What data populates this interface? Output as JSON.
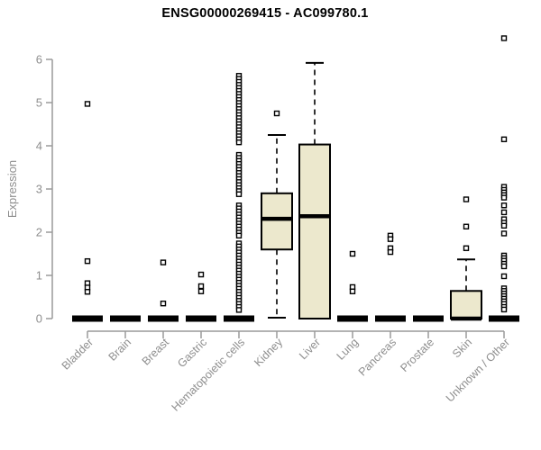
{
  "chart_data": {
    "type": "boxplot",
    "title": "ENSG00000269415 - AC099780.1",
    "xlabel": "",
    "ylabel": "Expression",
    "ylim": [
      0,
      6.6
    ],
    "yticks": [
      0,
      1,
      2,
      3,
      4,
      5,
      6
    ],
    "grid": false,
    "legend": false,
    "colors": {
      "box_fill": "#ECE8CD",
      "box_border": "#000000",
      "median": "#000000",
      "axis": "#9A9A9A",
      "tick_text": "#8E8E8E",
      "title_text": "#000000",
      "outlier_fill": "#FFFFFF"
    },
    "categories": [
      "Bladder",
      "Brain",
      "Breast",
      "Gastric",
      "Hematopoietic cells",
      "Kidney",
      "Liver",
      "Lung",
      "Pancreas",
      "Prostate",
      "Skin",
      "Unknown / Other"
    ],
    "boxes": [
      {
        "label": "Bladder",
        "q1": 0,
        "median": 0,
        "q3": 0,
        "whisker_low": 0,
        "whisker_high": 0,
        "outliers": [
          4.97,
          1.33,
          0.82,
          0.72,
          0.62
        ]
      },
      {
        "label": "Brain",
        "q1": 0,
        "median": 0,
        "q3": 0,
        "whisker_low": 0,
        "whisker_high": 0,
        "outliers": []
      },
      {
        "label": "Breast",
        "q1": 0,
        "median": 0,
        "q3": 0,
        "whisker_low": 0,
        "whisker_high": 0,
        "outliers": [
          1.3,
          0.35
        ]
      },
      {
        "label": "Gastric",
        "q1": 0,
        "median": 0,
        "q3": 0,
        "whisker_low": 0,
        "whisker_high": 0,
        "outliers": [
          1.02,
          0.75,
          0.63
        ]
      },
      {
        "label": "Hematopoietic cells",
        "q1": 0,
        "median": 0,
        "q3": 0,
        "whisker_low": 0,
        "whisker_high": 0,
        "outliers": [
          5.62,
          5.55,
          5.48,
          5.41,
          5.34,
          5.27,
          5.2,
          5.13,
          5.06,
          4.99,
          4.92,
          4.85,
          4.78,
          4.71,
          4.64,
          4.57,
          4.5,
          4.43,
          4.36,
          4.29,
          4.22,
          4.15,
          4.08,
          3.79,
          3.72,
          3.65,
          3.58,
          3.51,
          3.44,
          3.37,
          3.3,
          3.23,
          3.16,
          3.09,
          3.02,
          2.95,
          2.88,
          2.62,
          2.55,
          2.48,
          2.41,
          2.34,
          2.27,
          2.2,
          2.13,
          2.06,
          1.99,
          1.92,
          1.74,
          1.67,
          1.6,
          1.53,
          1.46,
          1.39,
          1.32,
          1.25,
          1.18,
          1.11,
          1.04,
          0.97,
          0.9,
          0.83,
          0.76,
          0.69,
          0.62,
          0.55,
          0.48,
          0.41,
          0.34,
          0.27,
          0.2
        ]
      },
      {
        "label": "Kidney",
        "q1": 1.6,
        "median": 2.31,
        "q3": 2.9,
        "whisker_low": 0.02,
        "whisker_high": 4.25,
        "outliers": [
          4.75
        ]
      },
      {
        "label": "Liver",
        "q1": 0,
        "median": 2.37,
        "q3": 4.03,
        "whisker_low": 0,
        "whisker_high": 5.92,
        "outliers": []
      },
      {
        "label": "Lung",
        "q1": 0,
        "median": 0,
        "q3": 0,
        "whisker_low": 0,
        "whisker_high": 0,
        "outliers": [
          1.5,
          0.73,
          0.63
        ]
      },
      {
        "label": "Pancreas",
        "q1": 0,
        "median": 0,
        "q3": 0,
        "whisker_low": 0,
        "whisker_high": 0,
        "outliers": [
          1.92,
          1.84,
          1.63,
          1.54
        ]
      },
      {
        "label": "Prostate",
        "q1": 0,
        "median": 0,
        "q3": 0,
        "whisker_low": 0,
        "whisker_high": 0,
        "outliers": []
      },
      {
        "label": "Skin",
        "q1": 0,
        "median": 0,
        "q3": 0.64,
        "whisker_low": 0,
        "whisker_high": 1.37,
        "outliers": [
          2.76,
          2.13,
          1.63
        ]
      },
      {
        "label": "Unknown / Other",
        "q1": 0,
        "median": 0,
        "q3": 0,
        "whisker_low": 0,
        "whisker_high": 0,
        "outliers": [
          6.49,
          4.15,
          3.05,
          2.98,
          2.92,
          2.86,
          2.8,
          2.62,
          2.46,
          2.3,
          2.22,
          2.15,
          1.97,
          1.46,
          1.4,
          1.34,
          1.27,
          1.21,
          0.98,
          0.7,
          0.64,
          0.58,
          0.52,
          0.46,
          0.4,
          0.34,
          0.27,
          0.21
        ]
      }
    ]
  }
}
